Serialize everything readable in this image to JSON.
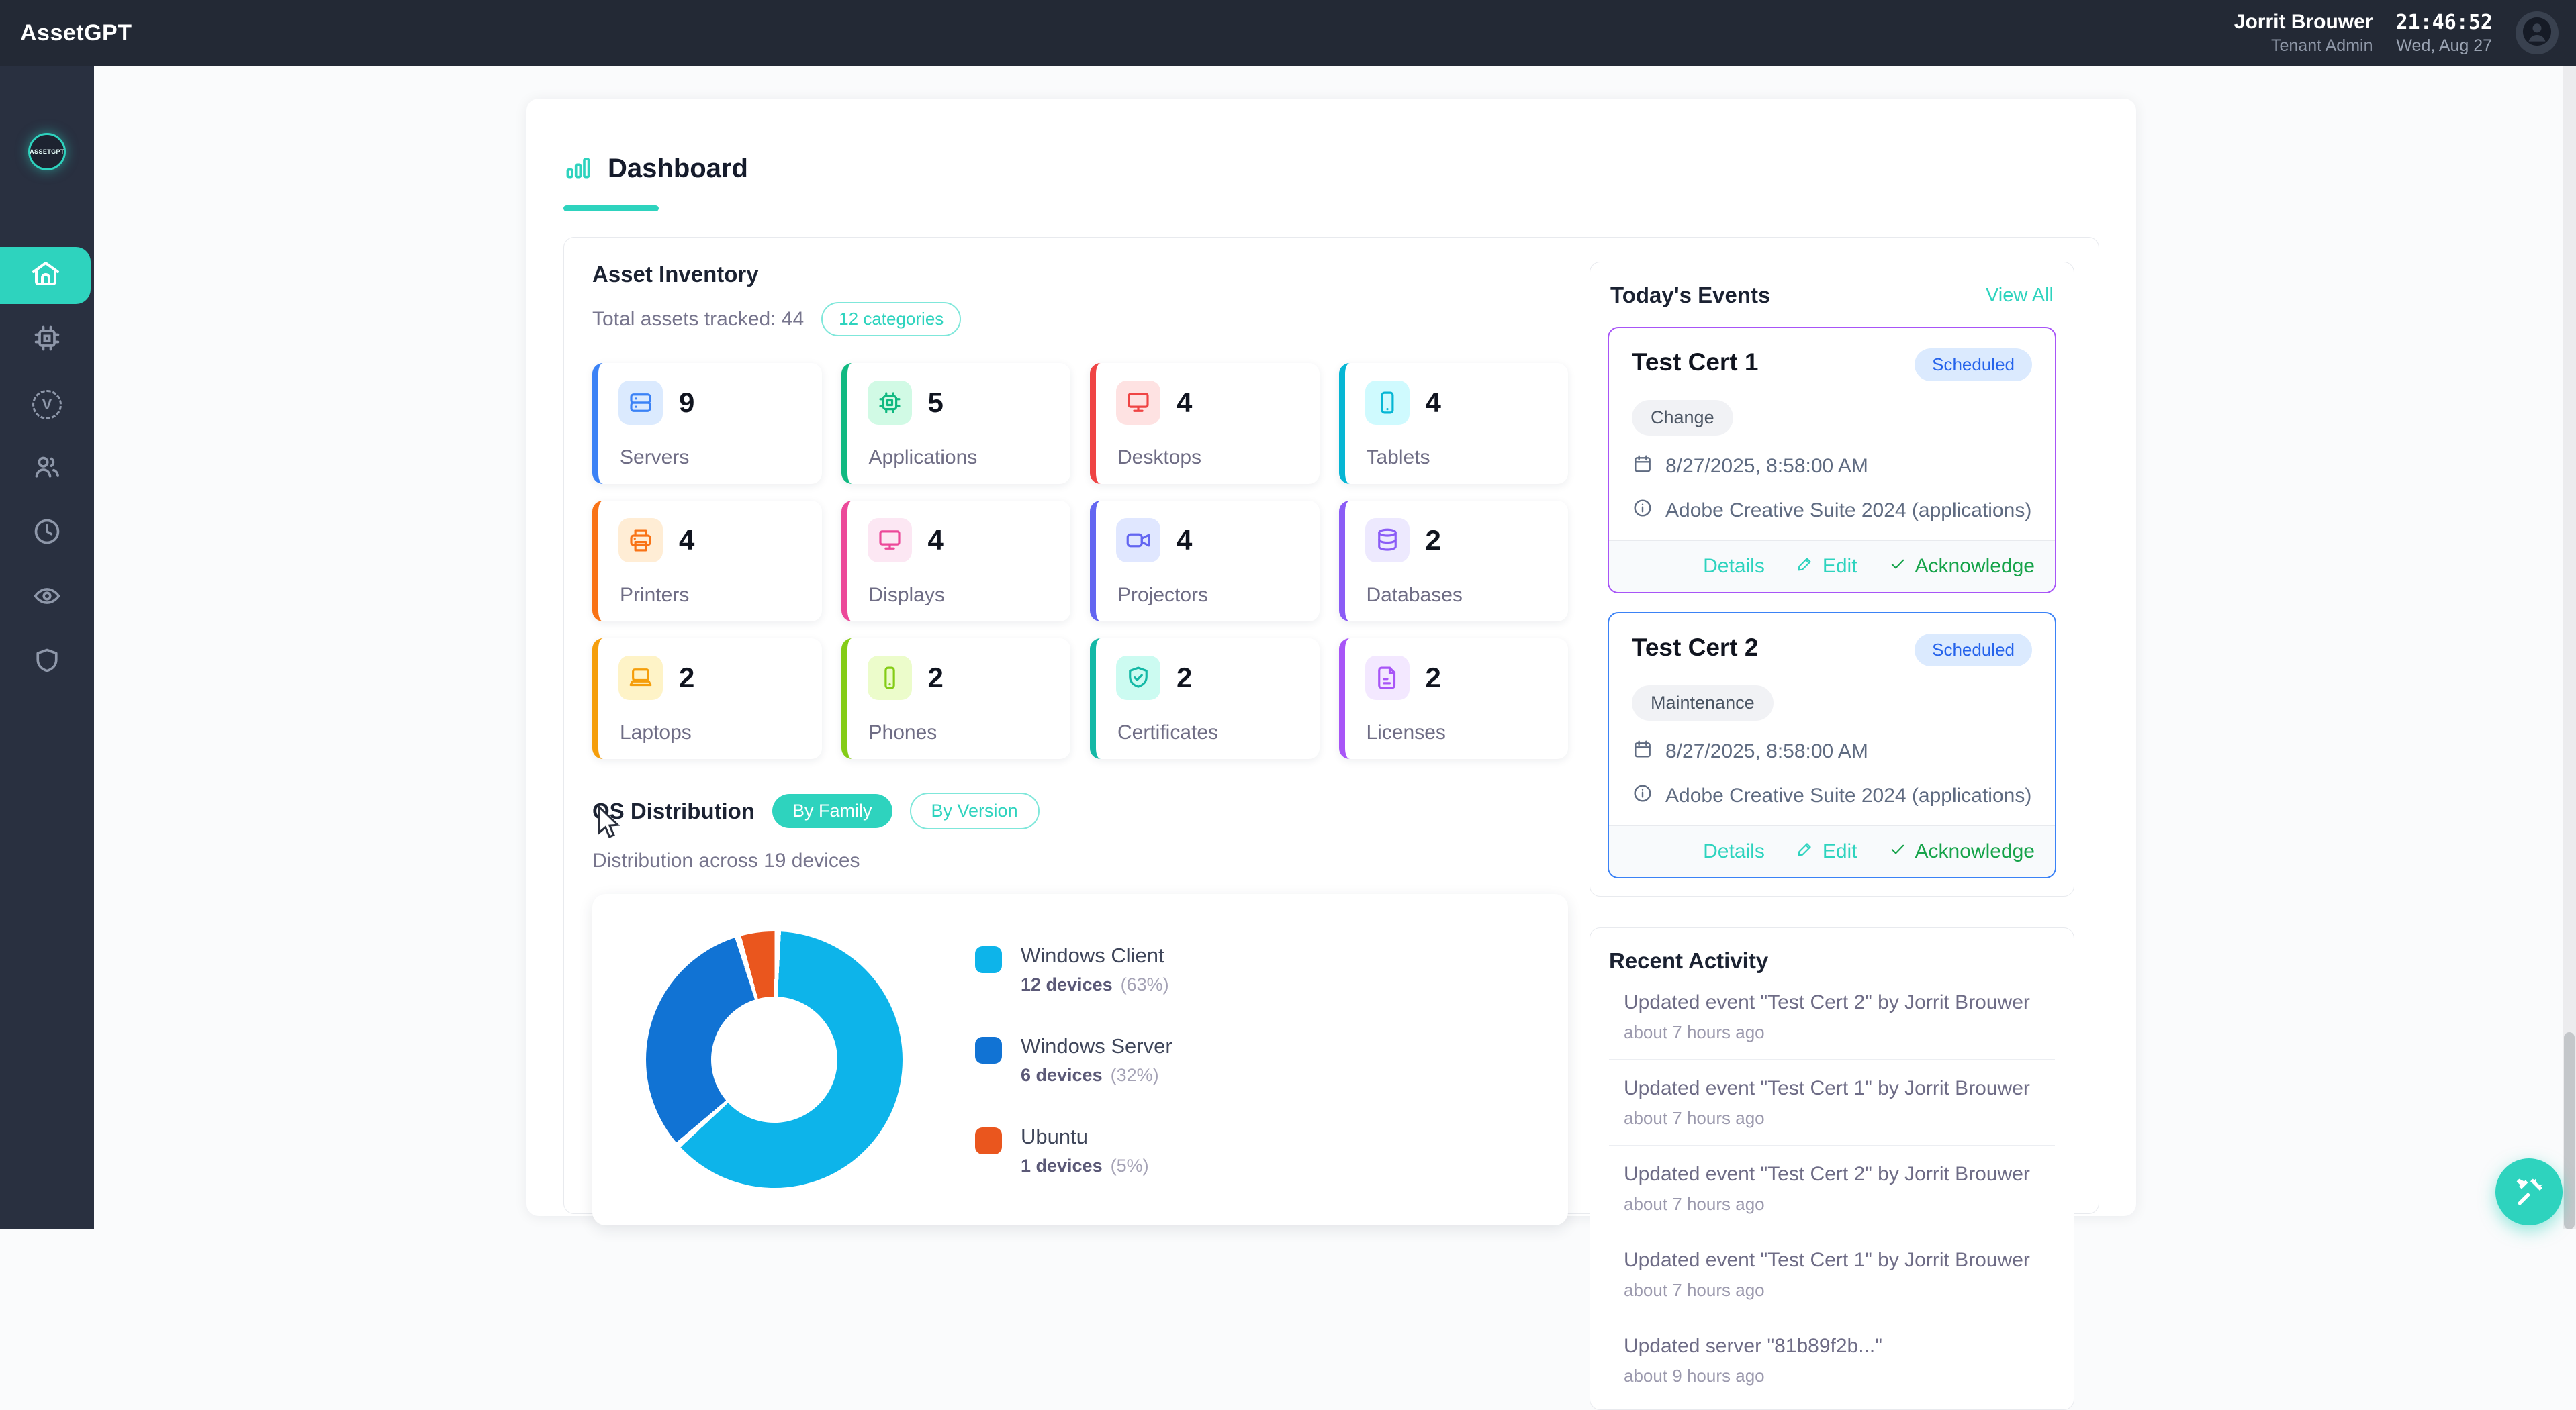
{
  "topbar": {
    "app_name": "AssetGPT",
    "user_name": "Jorrit Brouwer",
    "user_role": "Tenant Admin",
    "time": "21:46:52",
    "date": "Wed, Aug 27"
  },
  "sidebar": {
    "logo_text": "ASSETGPT",
    "items": [
      {
        "icon": "home",
        "active": true
      },
      {
        "icon": "cpu",
        "active": false
      },
      {
        "icon": "version",
        "active": false
      },
      {
        "icon": "users",
        "active": false
      },
      {
        "icon": "clock",
        "active": false
      },
      {
        "icon": "eye",
        "active": false
      },
      {
        "icon": "shield",
        "active": false
      }
    ]
  },
  "page": {
    "title": "Dashboard"
  },
  "asset_inventory": {
    "title": "Asset Inventory",
    "subtitle": "Total assets tracked: 44",
    "badge": "12 categories",
    "items": [
      {
        "label": "Servers",
        "count": "9",
        "icon": "server",
        "accent": "#3b82f6",
        "tile_bg": "#dbeafe"
      },
      {
        "label": "Applications",
        "count": "5",
        "icon": "chip",
        "accent": "#10b981",
        "tile_bg": "#d1fae5"
      },
      {
        "label": "Desktops",
        "count": "4",
        "icon": "desktop",
        "accent": "#ef4444",
        "tile_bg": "#fee2e2"
      },
      {
        "label": "Tablets",
        "count": "4",
        "icon": "tablet",
        "accent": "#06b6d4",
        "tile_bg": "#cffafe"
      },
      {
        "label": "Printers",
        "count": "4",
        "icon": "printer",
        "accent": "#f97316",
        "tile_bg": "#ffedd5"
      },
      {
        "label": "Displays",
        "count": "4",
        "icon": "display",
        "accent": "#ec4899",
        "tile_bg": "#fce7f3"
      },
      {
        "label": "Projectors",
        "count": "4",
        "icon": "projector",
        "accent": "#6366f1",
        "tile_bg": "#e0e7ff"
      },
      {
        "label": "Databases",
        "count": "2",
        "icon": "database",
        "accent": "#8b5cf6",
        "tile_bg": "#ede9fe"
      },
      {
        "label": "Laptops",
        "count": "2",
        "icon": "laptop",
        "accent": "#f59e0b",
        "tile_bg": "#fef3c7"
      },
      {
        "label": "Phones",
        "count": "2",
        "icon": "phone",
        "accent": "#84cc16",
        "tile_bg": "#ecfccb"
      },
      {
        "label": "Certificates",
        "count": "2",
        "icon": "shield-check",
        "accent": "#14b8a6",
        "tile_bg": "#ccfbf1"
      },
      {
        "label": "Licenses",
        "count": "2",
        "icon": "file",
        "accent": "#a855f7",
        "tile_bg": "#f3e8ff"
      }
    ]
  },
  "os_distribution": {
    "title": "OS Distribution",
    "toggle_active": "By Family",
    "toggle_inactive": "By Version",
    "subtitle": "Distribution across 19 devices"
  },
  "chart_data": {
    "type": "pie",
    "donut": true,
    "title": "OS Distribution (By Family)",
    "categories": [
      "Windows Client",
      "Windows Server",
      "Ubuntu"
    ],
    "values": [
      12,
      6,
      1
    ],
    "percentages": [
      63,
      32,
      5
    ],
    "value_labels": [
      "12 devices",
      "6 devices",
      "1 devices"
    ],
    "pct_labels": [
      "(63%)",
      "(32%)",
      "(5%)"
    ],
    "colors": [
      "#0db4ea",
      "#1173d4",
      "#ea561e"
    ],
    "legend_position": "right"
  },
  "events": {
    "title": "Today's Events",
    "view_all": "View All",
    "actions": {
      "details": "Details",
      "edit": "Edit",
      "acknowledge": "Acknowledge"
    },
    "items": [
      {
        "title": "Test Cert 1",
        "badge": "Scheduled",
        "tag": "Change",
        "datetime": "8/27/2025, 8:58:00 AM",
        "subject": "Adobe Creative Suite 2024 (applications)",
        "border": "#a855f7"
      },
      {
        "title": "Test Cert 2",
        "badge": "Scheduled",
        "tag": "Maintenance",
        "datetime": "8/27/2025, 8:58:00 AM",
        "subject": "Adobe Creative Suite 2024 (applications)",
        "border": "#3b82f6"
      }
    ]
  },
  "recent_activity": {
    "title": "Recent Activity",
    "items": [
      {
        "text": "Updated event \"Test Cert 2\" by Jorrit Brouwer",
        "time": "about 7 hours ago"
      },
      {
        "text": "Updated event \"Test Cert 1\" by Jorrit Brouwer",
        "time": "about 7 hours ago"
      },
      {
        "text": "Updated event \"Test Cert 2\" by Jorrit Brouwer",
        "time": "about 7 hours ago"
      },
      {
        "text": "Updated event \"Test Cert 1\" by Jorrit Brouwer",
        "time": "about 7 hours ago"
      },
      {
        "text": "Updated server \"81b89f2b...\"",
        "time": "about 9 hours ago"
      }
    ]
  },
  "colors": {
    "accent_teal": "#2ed3be",
    "topbar_bg": "#232935",
    "sidebar_bg": "#293040"
  }
}
